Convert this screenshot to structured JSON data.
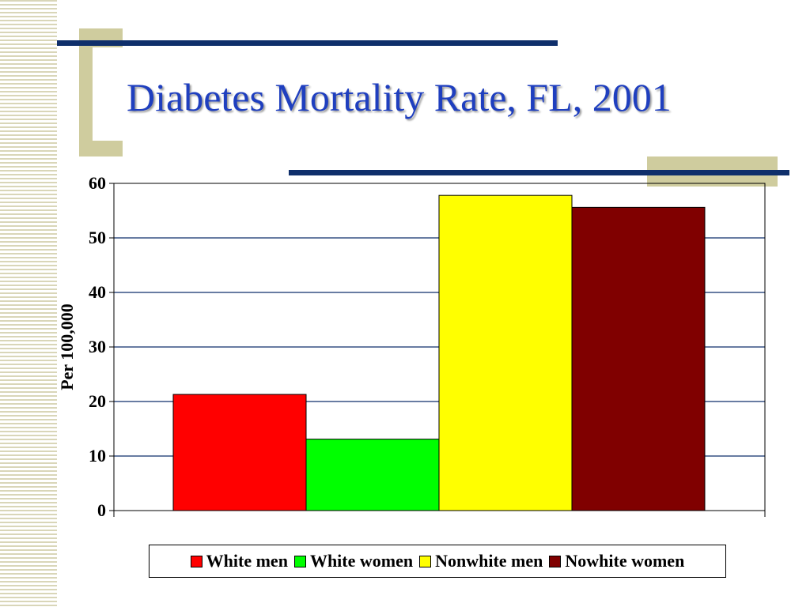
{
  "slide": {
    "title": "Diabetes Mortality Rate, FL, 2001",
    "accent_color": "#0f2f6b",
    "decor_color": "#cfcc9e",
    "title_color": "#1f3fbf"
  },
  "chart_data": {
    "type": "bar",
    "title": "",
    "ylabel": "Per 100,000",
    "xlabel": "",
    "ylim": [
      0,
      60
    ],
    "yticks": [
      "0",
      "10",
      "20",
      "30",
      "40",
      "50",
      "60"
    ],
    "grid": true,
    "legend_position": "bottom",
    "series": [
      {
        "name": "White men",
        "value": 21.3,
        "color": "#ff0000"
      },
      {
        "name": "White women",
        "value": 13.1,
        "color": "#00ff00"
      },
      {
        "name": "Nonwhite men",
        "value": 57.8,
        "color": "#ffff00"
      },
      {
        "name": "Nowhite women",
        "value": 55.6,
        "color": "#800000"
      }
    ]
  }
}
